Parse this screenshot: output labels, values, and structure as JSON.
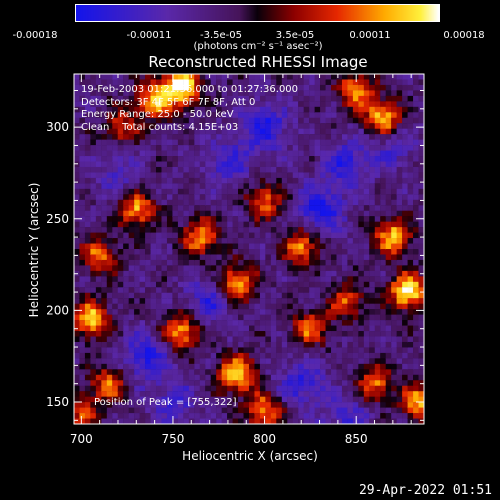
{
  "colorbar": {
    "ticks": [
      "-0.00018",
      "-0.00011",
      "-3.5e-05",
      "3.5e-05",
      "0.00011",
      "0.00018"
    ],
    "unit": "(photons cm⁻² s⁻¹ asec⁻²)"
  },
  "image": {
    "title": "Reconstructed RHESSI Image",
    "info_lines": [
      "19-Feb-2003 01:21:36.000 to 01:27:36.000",
      "Detectors: 3F 4F 5F 6F 7F 8F, Att 0",
      "Energy Range: 25.0 - 50.0 keV",
      "Clean    Total counts: 4.15E+03"
    ],
    "peak_text": "Position of Peak = [755,322]"
  },
  "footer": {
    "date": "29-Apr-2022 01:51"
  },
  "chart_data": {
    "type": "heatmap",
    "title": "Reconstructed RHESSI Image",
    "xlabel": "Heliocentric X (arcsec)",
    "ylabel": "Heliocentric Y (arcsec)",
    "xlim": [
      696,
      887
    ],
    "ylim": [
      138,
      329
    ],
    "xticks": [
      700,
      750,
      800,
      850
    ],
    "yticks": [
      150,
      200,
      250,
      300
    ],
    "value_range": [
      -0.00018,
      0.00018
    ],
    "colormap": "blue-purple-black-red-orange-yellow-white",
    "peak_position": [
      755,
      322
    ],
    "hotspots": [
      {
        "x": 755,
        "y": 322,
        "v": 1.0
      },
      {
        "x": 740,
        "y": 315,
        "v": 0.8
      },
      {
        "x": 865,
        "y": 305,
        "v": 0.85
      },
      {
        "x": 850,
        "y": 320,
        "v": 0.7
      },
      {
        "x": 722,
        "y": 300,
        "v": 0.5
      },
      {
        "x": 730,
        "y": 255,
        "v": 0.75
      },
      {
        "x": 710,
        "y": 230,
        "v": 0.6
      },
      {
        "x": 765,
        "y": 240,
        "v": 0.7
      },
      {
        "x": 785,
        "y": 215,
        "v": 0.8
      },
      {
        "x": 800,
        "y": 260,
        "v": 0.6
      },
      {
        "x": 820,
        "y": 235,
        "v": 0.7
      },
      {
        "x": 870,
        "y": 240,
        "v": 0.8
      },
      {
        "x": 878,
        "y": 210,
        "v": 0.95
      },
      {
        "x": 705,
        "y": 195,
        "v": 0.85
      },
      {
        "x": 755,
        "y": 188,
        "v": 0.75
      },
      {
        "x": 825,
        "y": 190,
        "v": 0.6
      },
      {
        "x": 845,
        "y": 205,
        "v": 0.55
      },
      {
        "x": 715,
        "y": 160,
        "v": 0.6
      },
      {
        "x": 785,
        "y": 165,
        "v": 0.9
      },
      {
        "x": 800,
        "y": 145,
        "v": 0.7
      },
      {
        "x": 860,
        "y": 160,
        "v": 0.65
      },
      {
        "x": 885,
        "y": 150,
        "v": 0.75
      },
      {
        "x": 700,
        "y": 145,
        "v": 0.55
      }
    ],
    "coldspots": [
      {
        "x": 800,
        "y": 300,
        "v": -0.85
      },
      {
        "x": 845,
        "y": 280,
        "v": -0.7
      },
      {
        "x": 780,
        "y": 280,
        "v": -0.6
      },
      {
        "x": 830,
        "y": 255,
        "v": -0.9
      },
      {
        "x": 770,
        "y": 205,
        "v": -0.65
      },
      {
        "x": 735,
        "y": 175,
        "v": -0.8
      },
      {
        "x": 820,
        "y": 160,
        "v": -0.7
      },
      {
        "x": 845,
        "y": 140,
        "v": -0.6
      },
      {
        "x": 750,
        "y": 150,
        "v": -0.55
      },
      {
        "x": 870,
        "y": 290,
        "v": -0.5
      },
      {
        "x": 720,
        "y": 275,
        "v": -0.45
      }
    ]
  }
}
